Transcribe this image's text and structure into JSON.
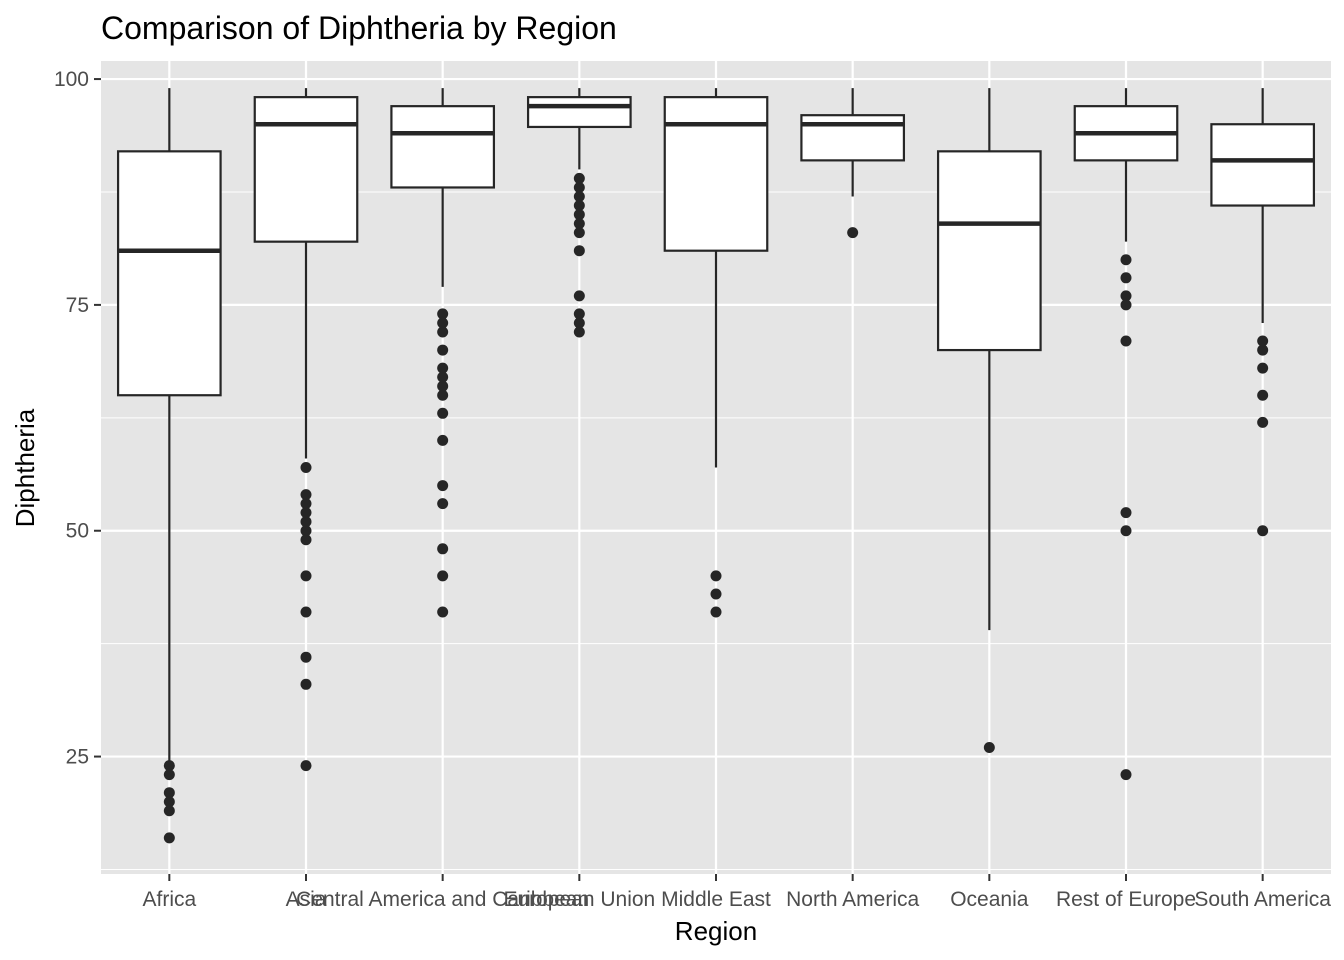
{
  "chart_data": {
    "type": "boxplot",
    "title": "Comparison of Diphtheria by Region",
    "xlabel": "Region",
    "ylabel": "Diphtheria",
    "ylim": [
      12,
      102
    ],
    "yticks": [
      25,
      50,
      75,
      100
    ],
    "grid": true,
    "colors": {
      "panel": "#e5e5e5",
      "grid": "#ffffff",
      "box_fill": "#ffffff",
      "box_stroke": "#262626",
      "outlier": "#262626",
      "tick_text": "#4d4d4d"
    },
    "categories": [
      "Africa",
      "Asia",
      "Central America and Caribbean",
      "European Union",
      "Middle East",
      "North America",
      "Oceania",
      "Rest of Europe",
      "South America"
    ],
    "boxes": [
      {
        "whisker_low": 24,
        "q1": 65,
        "median": 81,
        "q3": 92,
        "whisker_high": 99,
        "outliers": [
          24,
          23,
          21,
          20,
          19,
          16
        ]
      },
      {
        "whisker_low": 58,
        "q1": 82,
        "median": 95,
        "q3": 98,
        "whisker_high": 99,
        "outliers": [
          57,
          54,
          53,
          52,
          51,
          50,
          49,
          45,
          41,
          36,
          33,
          24
        ]
      },
      {
        "whisker_low": 77,
        "q1": 88,
        "median": 94,
        "q3": 97,
        "whisker_high": 99,
        "outliers": [
          74,
          73,
          72,
          70,
          68,
          67,
          66,
          65,
          63,
          60,
          55,
          53,
          48,
          45,
          41
        ]
      },
      {
        "whisker_low": 90,
        "q1": 94.7,
        "median": 97,
        "q3": 98,
        "whisker_high": 99,
        "outliers": [
          89,
          88,
          87,
          86,
          85,
          84,
          83,
          81,
          76,
          74,
          73,
          72
        ]
      },
      {
        "whisker_low": 57,
        "q1": 81,
        "median": 95,
        "q3": 98,
        "whisker_high": 99,
        "outliers": [
          45,
          43,
          41
        ]
      },
      {
        "whisker_low": 87,
        "q1": 91,
        "median": 95,
        "q3": 96,
        "whisker_high": 99,
        "outliers": [
          83
        ]
      },
      {
        "whisker_low": 39,
        "q1": 70,
        "median": 84,
        "q3": 92,
        "whisker_high": 99,
        "outliers": [
          26
        ]
      },
      {
        "whisker_low": 82,
        "q1": 91,
        "median": 94,
        "q3": 97,
        "whisker_high": 99,
        "outliers": [
          80,
          78,
          76,
          75,
          71,
          52,
          50,
          23
        ]
      },
      {
        "whisker_low": 73,
        "q1": 86,
        "median": 91,
        "q3": 95,
        "whisker_high": 99,
        "outliers": [
          71,
          70,
          68,
          65,
          62,
          50
        ]
      }
    ]
  }
}
